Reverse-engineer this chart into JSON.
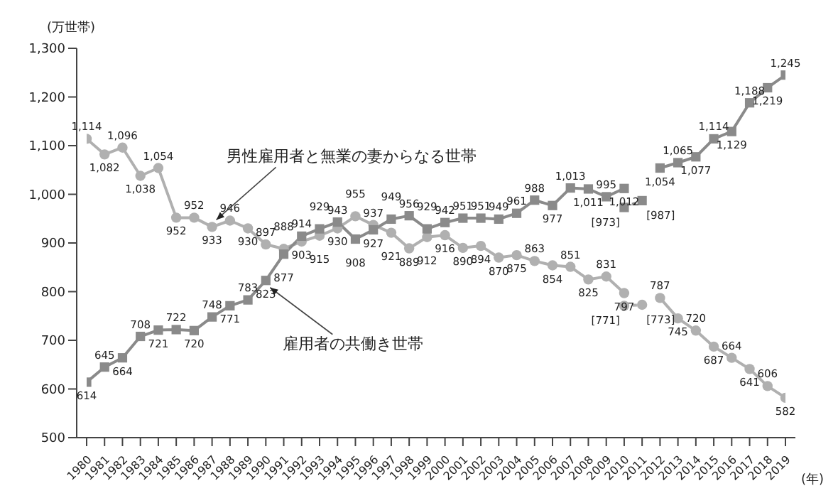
{
  "chart_data": {
    "type": "line",
    "ylabel": "(万世帯)",
    "xlabel": "(年)",
    "categories": [
      "1980",
      "1981",
      "1982",
      "1983",
      "1984",
      "1985",
      "1986",
      "1987",
      "1988",
      "1989",
      "1990",
      "1991",
      "1992",
      "1993",
      "1994",
      "1995",
      "1996",
      "1997",
      "1998",
      "1999",
      "2000",
      "2001",
      "2002",
      "2003",
      "2004",
      "2005",
      "2006",
      "2007",
      "2008",
      "2009",
      "2010",
      "2011",
      "2012",
      "2013",
      "2014",
      "2015",
      "2016",
      "2017",
      "2018",
      "2019"
    ],
    "series": [
      {
        "name": "男性雇用者と無業の妻からなる世帯",
        "color": "#b0b0b0",
        "marker": "circle",
        "values": [
          1114,
          1082,
          1096,
          1038,
          1054,
          952,
          952,
          933,
          946,
          930,
          897,
          888,
          903,
          915,
          930,
          955,
          937,
          921,
          889,
          912,
          916,
          890,
          894,
          870,
          875,
          863,
          854,
          851,
          825,
          831,
          797,
          null,
          787,
          745,
          720,
          687,
          664,
          641,
          606,
          582
        ],
        "value_labels": [
          "1,114",
          "1,082",
          "1,096",
          "1,038",
          "1,054",
          "952",
          "952",
          "933",
          "946",
          "930",
          "897",
          "888",
          "903",
          "915",
          "930",
          "955",
          "937",
          "921",
          "889",
          "912",
          "916",
          "890",
          "894",
          "870",
          "875",
          "863",
          "854",
          "851",
          "825",
          "831",
          "797",
          null,
          "787",
          "745",
          "720",
          "687",
          "664",
          "641",
          "606",
          "582"
        ]
      },
      {
        "name": "雇用者の共働き世帯",
        "color": "#8a8a8a",
        "marker": "square",
        "values": [
          614,
          645,
          664,
          708,
          721,
          722,
          720,
          748,
          771,
          783,
          823,
          877,
          914,
          929,
          943,
          908,
          927,
          949,
          956,
          929,
          942,
          951,
          951,
          949,
          961,
          988,
          977,
          1013,
          1011,
          995,
          1012,
          null,
          1054,
          1065,
          1077,
          1114,
          1129,
          1188,
          1219,
          1245
        ],
        "value_labels": [
          "614",
          "645",
          "664",
          "708",
          "721",
          "722",
          "720",
          "748",
          "771",
          "783",
          "823",
          "877",
          "914",
          "929",
          "943",
          "908",
          "927",
          "949",
          "956",
          "929",
          "942",
          "951",
          "951",
          "949",
          "961",
          "988",
          "977",
          "1,013",
          "1,011",
          "995",
          "1,012",
          null,
          "1,054",
          "1,065",
          "1,077",
          "1,114",
          "1,129",
          "1,188",
          "1,219",
          "1,245"
        ]
      },
      {
        "color": "#b0b0b0",
        "marker": "circle",
        "line_style": "dashed",
        "values": [
          null,
          null,
          null,
          null,
          null,
          null,
          null,
          null,
          null,
          null,
          null,
          null,
          null,
          null,
          null,
          null,
          null,
          null,
          null,
          null,
          null,
          null,
          null,
          null,
          null,
          null,
          null,
          null,
          null,
          null,
          771,
          773,
          null,
          null,
          null,
          null,
          null,
          null,
          null,
          null
        ],
        "value_labels": [
          null,
          null,
          null,
          null,
          null,
          null,
          null,
          null,
          null,
          null,
          null,
          null,
          null,
          null,
          null,
          null,
          null,
          null,
          null,
          null,
          null,
          null,
          null,
          null,
          null,
          null,
          null,
          null,
          null,
          null,
          "[771]",
          "[773]",
          null,
          null,
          null,
          null,
          null,
          null,
          null,
          null
        ]
      },
      {
        "color": "#8a8a8a",
        "marker": "square",
        "line_style": "dashed",
        "values": [
          null,
          null,
          null,
          null,
          null,
          null,
          null,
          null,
          null,
          null,
          null,
          null,
          null,
          null,
          null,
          null,
          null,
          null,
          null,
          null,
          null,
          null,
          null,
          null,
          null,
          null,
          null,
          null,
          null,
          null,
          973,
          987,
          null,
          null,
          null,
          null,
          null,
          null,
          null,
          null
        ],
        "value_labels": [
          null,
          null,
          null,
          null,
          null,
          null,
          null,
          null,
          null,
          null,
          null,
          null,
          null,
          null,
          null,
          null,
          null,
          null,
          null,
          null,
          null,
          null,
          null,
          null,
          null,
          null,
          null,
          null,
          null,
          null,
          "[973]",
          "[987]",
          null,
          null,
          null,
          null,
          null,
          null,
          null,
          null
        ]
      }
    ],
    "ylim": [
      500,
      1300
    ],
    "yticks": [
      500,
      600,
      700,
      800,
      900,
      {
        "value": 1000,
        "label": "1,000"
      },
      {
        "value": 1100,
        "label": "1,100"
      },
      {
        "value": 1200,
        "label": "1,200"
      },
      {
        "value": 1300,
        "label": "1,300"
      }
    ],
    "grid": false
  }
}
